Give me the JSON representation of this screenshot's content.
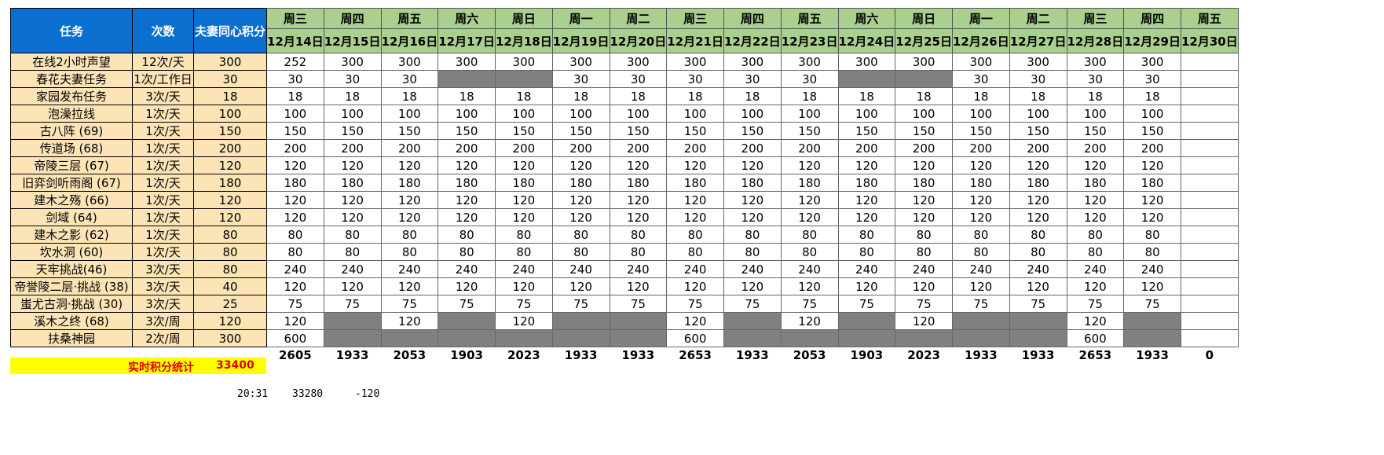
{
  "header": {
    "col_task": "任务",
    "col_times": "次数",
    "col_points": "夫妻同心积分",
    "weekdays": [
      "周三",
      "周四",
      "周五",
      "周六",
      "周日",
      "周一",
      "周二",
      "周三",
      "周四",
      "周五",
      "周六",
      "周日",
      "周一",
      "周二",
      "周三",
      "周四",
      "周五"
    ],
    "dates": [
      "12月14日",
      "12月15日",
      "12月16日",
      "12月17日",
      "12月18日",
      "12月19日",
      "12月20日",
      "12月21日",
      "12月22日",
      "12月23日",
      "12月24日",
      "12月25日",
      "12月26日",
      "12月27日",
      "12月28日",
      "12月29日",
      "12月30日"
    ]
  },
  "rows": [
    {
      "task": "在线2小时声望",
      "times": "12次/天",
      "points": "300",
      "values": [
        "252",
        "300",
        "300",
        "300",
        "300",
        "300",
        "300",
        "300",
        "300",
        "300",
        "300",
        "300",
        "300",
        "300",
        "300",
        "300",
        ""
      ]
    },
    {
      "task": "春花夫妻任务",
      "times": "1次/工作日",
      "points": "30",
      "values": [
        "30",
        "30",
        "30",
        "#",
        "#",
        "30",
        "30",
        "30",
        "30",
        "30",
        "#",
        "#",
        "30",
        "30",
        "30",
        "30",
        ""
      ]
    },
    {
      "task": "家园发布任务",
      "times": "3次/天",
      "points": "18",
      "values": [
        "18",
        "18",
        "18",
        "18",
        "18",
        "18",
        "18",
        "18",
        "18",
        "18",
        "18",
        "18",
        "18",
        "18",
        "18",
        "18",
        ""
      ]
    },
    {
      "task": "泡澡拉线",
      "times": "1次/天",
      "points": "100",
      "values": [
        "100",
        "100",
        "100",
        "100",
        "100",
        "100",
        "100",
        "100",
        "100",
        "100",
        "100",
        "100",
        "100",
        "100",
        "100",
        "100",
        ""
      ]
    },
    {
      "task": "古八阵 (69)",
      "times": "1次/天",
      "points": "150",
      "values": [
        "150",
        "150",
        "150",
        "150",
        "150",
        "150",
        "150",
        "150",
        "150",
        "150",
        "150",
        "150",
        "150",
        "150",
        "150",
        "150",
        ""
      ]
    },
    {
      "task": "传道场 (68)",
      "times": "1次/天",
      "points": "200",
      "values": [
        "200",
        "200",
        "200",
        "200",
        "200",
        "200",
        "200",
        "200",
        "200",
        "200",
        "200",
        "200",
        "200",
        "200",
        "200",
        "200",
        ""
      ]
    },
    {
      "task": "帝陵三层 (67)",
      "times": "1次/天",
      "points": "120",
      "values": [
        "120",
        "120",
        "120",
        "120",
        "120",
        "120",
        "120",
        "120",
        "120",
        "120",
        "120",
        "120",
        "120",
        "120",
        "120",
        "120",
        ""
      ]
    },
    {
      "task": "旧弈剑听雨阁 (67)",
      "times": "1次/天",
      "points": "180",
      "values": [
        "180",
        "180",
        "180",
        "180",
        "180",
        "180",
        "180",
        "180",
        "180",
        "180",
        "180",
        "180",
        "180",
        "180",
        "180",
        "180",
        ""
      ]
    },
    {
      "task": "建木之殇 (66)",
      "times": "1次/天",
      "points": "120",
      "values": [
        "120",
        "120",
        "120",
        "120",
        "120",
        "120",
        "120",
        "120",
        "120",
        "120",
        "120",
        "120",
        "120",
        "120",
        "120",
        "120",
        ""
      ]
    },
    {
      "task": "剑域 (64)",
      "times": "1次/天",
      "points": "120",
      "values": [
        "120",
        "120",
        "120",
        "120",
        "120",
        "120",
        "120",
        "120",
        "120",
        "120",
        "120",
        "120",
        "120",
        "120",
        "120",
        "120",
        ""
      ]
    },
    {
      "task": "建木之影 (62)",
      "times": "1次/天",
      "points": "80",
      "values": [
        "80",
        "80",
        "80",
        "80",
        "80",
        "80",
        "80",
        "80",
        "80",
        "80",
        "80",
        "80",
        "80",
        "80",
        "80",
        "80",
        ""
      ]
    },
    {
      "task": "坎水洞 (60)",
      "times": "1次/天",
      "points": "80",
      "values": [
        "80",
        "80",
        "80",
        "80",
        "80",
        "80",
        "80",
        "80",
        "80",
        "80",
        "80",
        "80",
        "80",
        "80",
        "80",
        "80",
        ""
      ]
    },
    {
      "task": "天牢挑战(46)",
      "times": "3次/天",
      "points": "80",
      "values": [
        "240",
        "240",
        "240",
        "240",
        "240",
        "240",
        "240",
        "240",
        "240",
        "240",
        "240",
        "240",
        "240",
        "240",
        "240",
        "240",
        ""
      ]
    },
    {
      "task": "帝誉陵二层·挑战 (38)",
      "times": "3次/天",
      "points": "40",
      "values": [
        "120",
        "120",
        "120",
        "120",
        "120",
        "120",
        "120",
        "120",
        "120",
        "120",
        "120",
        "120",
        "120",
        "120",
        "120",
        "120",
        ""
      ]
    },
    {
      "task": "蚩尤古洞·挑战 (30)",
      "times": "3次/天",
      "points": "25",
      "values": [
        "75",
        "75",
        "75",
        "75",
        "75",
        "75",
        "75",
        "75",
        "75",
        "75",
        "75",
        "75",
        "75",
        "75",
        "75",
        "75",
        ""
      ]
    },
    {
      "task": "溪木之终 (68)",
      "times": "3次/周",
      "points": "120",
      "values": [
        "120",
        "#",
        "120",
        "#",
        "120",
        "#",
        "#",
        "120",
        "#",
        "120",
        "#",
        "120",
        "#",
        "#",
        "120",
        "#",
        ""
      ]
    },
    {
      "task": "扶桑神园",
      "times": "2次/周",
      "points": "300",
      "values": [
        "600",
        "#",
        "#",
        "#",
        "#",
        "#",
        "#",
        "600",
        "#",
        "#",
        "#",
        "#",
        "#",
        "#",
        "600",
        "#",
        ""
      ]
    }
  ],
  "totals": [
    "2605",
    "1933",
    "2053",
    "1903",
    "2023",
    "1933",
    "1933",
    "2653",
    "1933",
    "2053",
    "1903",
    "2023",
    "1933",
    "1933",
    "2653",
    "1933",
    "0"
  ],
  "summary": {
    "label": "实时积分统计",
    "value": "33400"
  },
  "footnote": {
    "time": "20:31",
    "score": "33280",
    "delta": "-120"
  }
}
